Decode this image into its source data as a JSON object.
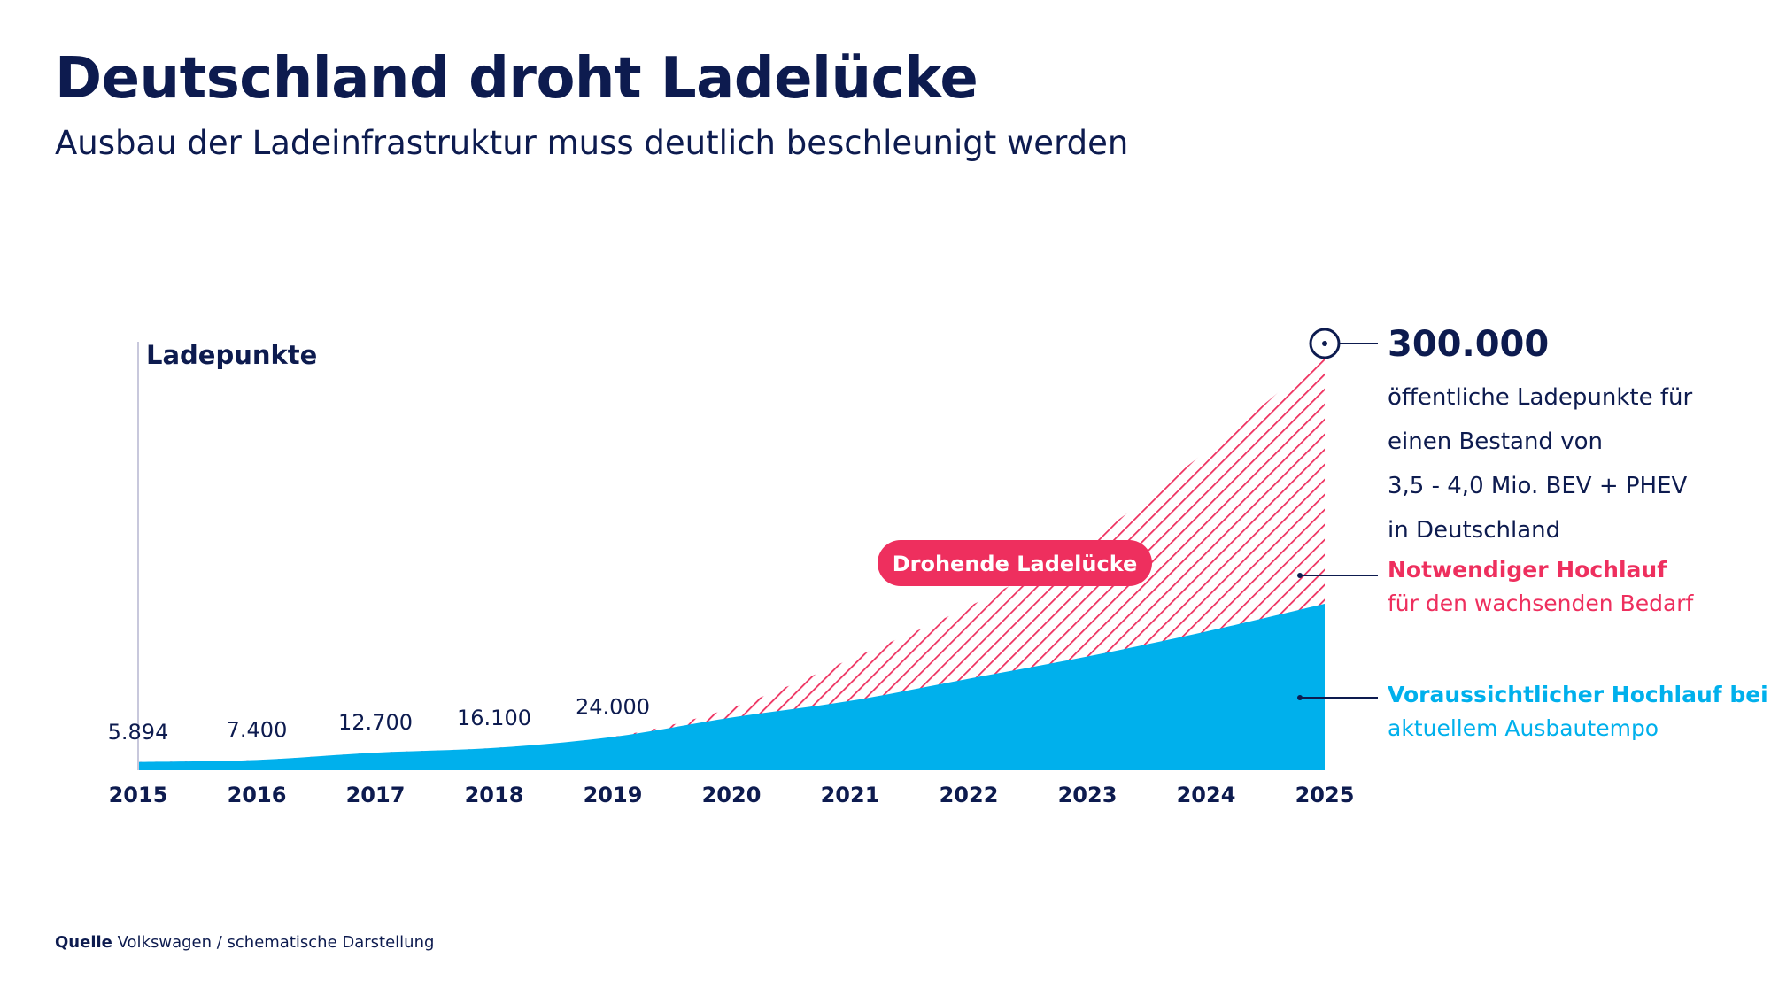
{
  "header": {
    "title": "Deutschland droht Ladelücke",
    "subtitle": "Ausbau der Ladeinfrastruktur muss deutlich beschleunigt werden"
  },
  "source": {
    "label": "Quelle",
    "text": "Volkswagen / schematische Darstellung"
  },
  "colors": {
    "navy": "#0d1b4f",
    "current": "#00b0ec",
    "needed": "#ee2f5e"
  },
  "chart_data": {
    "type": "area",
    "ylabel": "Ladepunkte",
    "x": [
      "2015",
      "2016",
      "2017",
      "2018",
      "2019",
      "2020",
      "2021",
      "2022",
      "2023",
      "2024",
      "2025"
    ],
    "ylim": [
      0,
      300000
    ],
    "series": [
      {
        "name": "Voraussichtlicher Hochlauf bei aktuellem Ausbautempo",
        "values": [
          5894,
          7400,
          12700,
          16100,
          24000,
          38000,
          50000,
          66000,
          82000,
          100000,
          120000
        ]
      },
      {
        "name": "Notwendiger Hochlauf für den wachsenden Bedarf",
        "values": [
          5894,
          7400,
          12700,
          16100,
          24000,
          45000,
          80000,
          118000,
          165000,
          230000,
          300000
        ]
      }
    ],
    "data_labels": [
      {
        "x": "2015",
        "text": "5.894"
      },
      {
        "x": "2016",
        "text": "7.400"
      },
      {
        "x": "2017",
        "text": "12.700"
      },
      {
        "x": "2018",
        "text": "16.100"
      },
      {
        "x": "2019",
        "text": "24.000"
      }
    ],
    "gap_label": "Drohende Ladelücke",
    "endpoint": {
      "value": "300.000",
      "description": [
        "öffentliche Ladepunkte für",
        "einen Bestand von",
        "3,5 - 4,0 Mio. BEV + PHEV",
        "in Deutschland"
      ]
    },
    "legend": [
      {
        "bold": "Notwendiger Hochlauf",
        "text": "für den wachsenden Bedarf",
        "color": "#ee2f5e"
      },
      {
        "bold": "Voraussichtlicher Hochlauf bei",
        "text": "aktuellem Ausbautempo",
        "color": "#00b0ec"
      }
    ]
  }
}
